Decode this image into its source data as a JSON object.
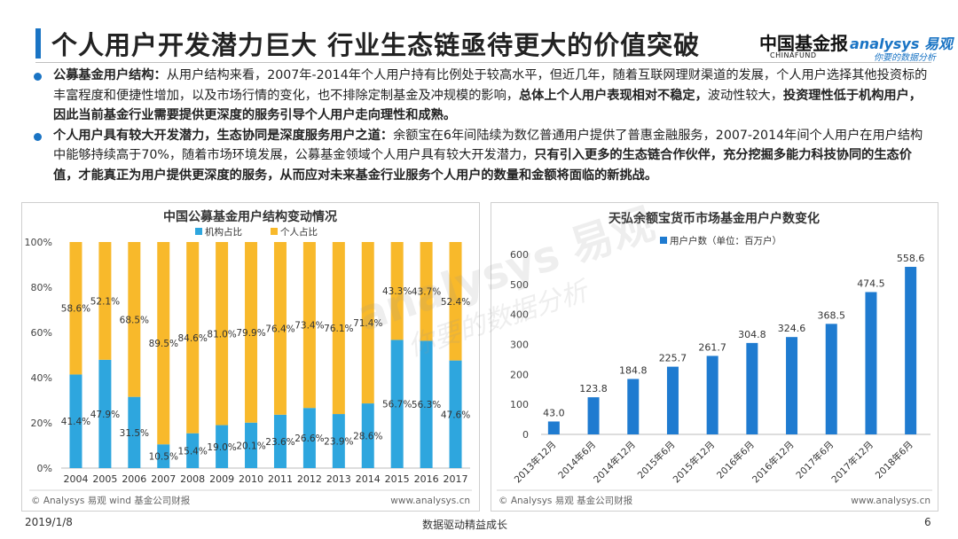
{
  "header": {
    "title": "个人用户开发潜力巨大 行业生态链亟待更大的价值突破",
    "logo_cn": "中国基金报",
    "logo_cn_sub": "CHINAFUND",
    "logo_en": "analysys 易观",
    "logo_en_sub": "你要的数据分析",
    "accent_color": "#1a74c4"
  },
  "bullets": [
    {
      "bold_lead": "公募基金用户结构：",
      "text1": "从用户结构来看，2007年-2014年个人用户持有比例处于较高水平，但近几年，随着互联网理财渠道的发展，个人用户选择其他投资标的丰富程度和便捷性增加，以及市场行情的变化，也不排除定制基金及冲规模的影响，",
      "bold_mid": "总体上个人用户表现相对不稳定，",
      "text2": "波动性较大，",
      "bold_tail": "投资理性低于机构用户，因此当前基金行业需要提供更深度的服务引导个人用户走向理性和成熟。"
    },
    {
      "bold_lead": "个人用户具有较大开发潜力，生态协同是深度服务用户之道：",
      "text1": "余额宝在6年间陆续为数亿普通用户提供了普惠金融服务，2007-2014年间个人用户在用户结构中能够持续高于70%，随着市场环境发展，公募基金领域个人用户具有较大开发潜力，",
      "bold_mid": "只有引入更多的生态链合作伙伴，充分挖掘多能力科技协同的生态价值，才能真正为用户提供更深度的服务，从而应对未来基金行业服务个人用户的数量和金额将面临的新挑战。",
      "text2": "",
      "bold_tail": ""
    }
  ],
  "watermark": {
    "brand": "analysys 易观",
    "slogan": "你要的数据分析"
  },
  "chart_data": [
    {
      "type": "bar",
      "stacked": true,
      "title": "中国公募基金用户结构变动情况",
      "categories": [
        "2004",
        "2005",
        "2006",
        "2007",
        "2008",
        "2009",
        "2010",
        "2011",
        "2012",
        "2013",
        "2014",
        "2015",
        "2016",
        "2017"
      ],
      "series": [
        {
          "name": "机构占比",
          "color": "#2ea6de",
          "values": [
            41.4,
            47.9,
            31.5,
            10.5,
            15.4,
            19.0,
            20.1,
            23.6,
            26.6,
            23.9,
            28.6,
            56.7,
            56.3,
            47.6
          ]
        },
        {
          "name": "个人占比",
          "color": "#f8b92b",
          "values": [
            58.6,
            52.1,
            68.5,
            89.5,
            84.6,
            81.0,
            79.9,
            76.4,
            73.4,
            76.1,
            71.4,
            43.3,
            43.7,
            52.4
          ]
        }
      ],
      "value_labels": [
        [
          "41.4%",
          "47.9%",
          "31.5%",
          "10.5%",
          "15.4%",
          "19.0%",
          "20.1%",
          "23.6%",
          "26.6%",
          "23.9%",
          "28.6%",
          "56.7%",
          "56.3%",
          "47.6%"
        ],
        [
          "58.6%",
          "52.1%",
          "68.5%",
          "89.5%",
          "84.6%",
          "81.0%",
          "79.9%",
          "76.4%",
          "73.4%",
          "76.1%",
          "71.4%",
          "43.3%",
          "43.7%",
          "52.4%"
        ]
      ],
      "ylim": [
        0,
        100
      ],
      "yticks": [
        "0%",
        "20%",
        "40%",
        "60%",
        "80%",
        "100%"
      ],
      "grid": false,
      "legend": "top-center",
      "source": "© Analysys 易观 wind 基金公司财报",
      "site": "www.analysys.cn"
    },
    {
      "type": "bar",
      "title": "天弘余额宝货币市场基金用户户数变化",
      "categories": [
        "2013年12月",
        "2014年6月",
        "2014年12月",
        "2015年6月",
        "2015年12月",
        "2016年6月",
        "2016年12月",
        "2017年6月",
        "2017年12月",
        "2018年6月"
      ],
      "series": [
        {
          "name": "用户户数（单位：百万户）",
          "color": "#1f7bd0",
          "values": [
            43.0,
            123.8,
            184.8,
            225.7,
            261.7,
            304.8,
            324.6,
            368.5,
            474.5,
            558.6
          ]
        }
      ],
      "value_labels": [
        "43.0",
        "123.8",
        "184.8",
        "225.7",
        "261.7",
        "304.8",
        "324.6",
        "368.5",
        "474.5",
        "558.6"
      ],
      "ylim": [
        0,
        600
      ],
      "yticks": [
        "0",
        "100",
        "200",
        "300",
        "400",
        "500",
        "600"
      ],
      "grid": false,
      "legend": "top-left",
      "source": "© Analysys 易观 基金公司财报",
      "site": "www.analysys.cn"
    }
  ],
  "footer": {
    "date": "2019/1/8",
    "slogan": "数据驱动精益成长",
    "page": "6"
  }
}
